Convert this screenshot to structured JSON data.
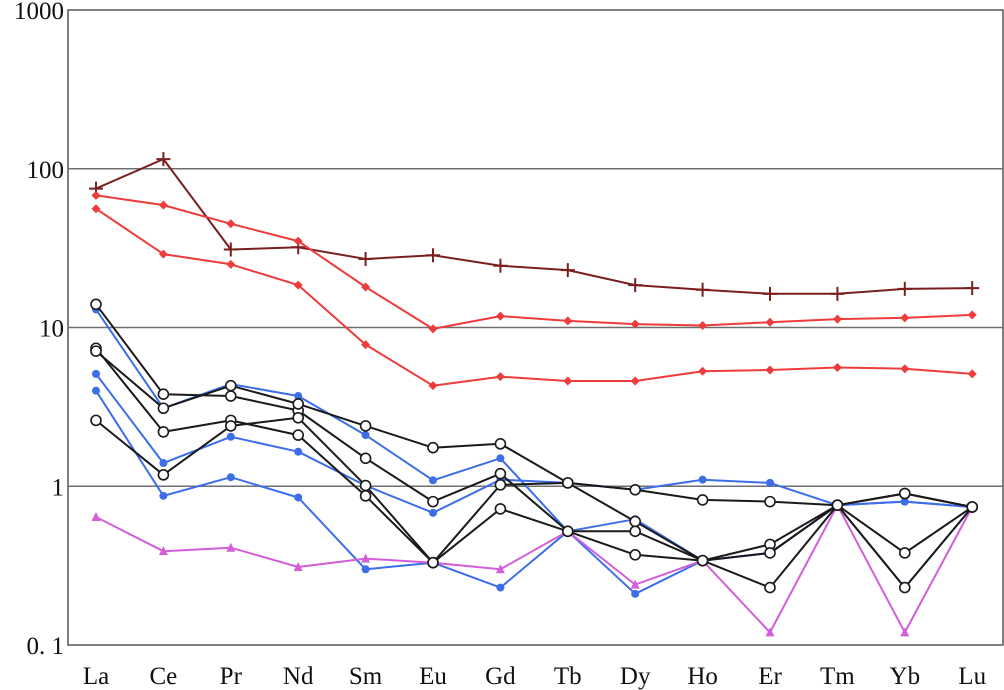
{
  "chart_data": {
    "type": "line",
    "title": "",
    "xlabel": "",
    "ylabel": "",
    "yscale": "log",
    "ylim": [
      0.1,
      1000
    ],
    "y_ticks": [
      {
        "value": 1000,
        "label": "1000"
      },
      {
        "value": 100,
        "label": "100"
      },
      {
        "value": 10,
        "label": "10"
      },
      {
        "value": 1,
        "label": "1"
      },
      {
        "value": 0.1,
        "label": "0. 1"
      }
    ],
    "categories": [
      "La",
      "Ce",
      "Pr",
      "Nd",
      "Sm",
      "Eu",
      "Gd",
      "Tb",
      "Dy",
      "Ho",
      "Er",
      "Tm",
      "Yb",
      "Lu"
    ],
    "series": [
      {
        "name": "dark-plus",
        "color": "#7a1f1f",
        "marker": "plus",
        "values": [
          75,
          115,
          31,
          32,
          27,
          28.5,
          24.5,
          23,
          18.5,
          17.3,
          16.3,
          16.3,
          17.5,
          17.7
        ]
      },
      {
        "name": "red-1",
        "color": "#ee3b3b",
        "marker": "diamond",
        "values": [
          68,
          59,
          45,
          35,
          18,
          9.8,
          11.8,
          11,
          10.5,
          10.3,
          10.8,
          11.3,
          11.5,
          12
        ]
      },
      {
        "name": "red-2",
        "color": "#ee3b3b",
        "marker": "diamond",
        "values": [
          56,
          29,
          25,
          18.5,
          7.8,
          4.3,
          4.9,
          4.6,
          4.6,
          5.3,
          5.4,
          5.6,
          5.5,
          5.1
        ]
      },
      {
        "name": "blue-1",
        "color": "#3d6ee8",
        "marker": "dot",
        "values": [
          13,
          3.1,
          4.4,
          3.7,
          2.1,
          1.09,
          1.5,
          0.52,
          0.62,
          0.34,
          0.38,
          0.76,
          0.23,
          0.74
        ]
      },
      {
        "name": "blue-2",
        "color": "#3d6ee8",
        "marker": "dot",
        "values": [
          5.1,
          1.4,
          2.05,
          1.65,
          1.01,
          0.68,
          1.1,
          1.05,
          0.95,
          1.1,
          1.05,
          0.76,
          0.8,
          0.74
        ]
      },
      {
        "name": "blue-3",
        "color": "#3d6ee8",
        "marker": "dot",
        "values": [
          4,
          0.87,
          1.14,
          0.85,
          0.3,
          0.33,
          0.23,
          0.52,
          0.21,
          0.34,
          0.38,
          0.76,
          0.8,
          0.74
        ]
      },
      {
        "name": "magenta",
        "color": "#d35fd8",
        "marker": "triangle",
        "values": [
          0.64,
          0.39,
          0.41,
          0.31,
          0.35,
          0.33,
          0.3,
          0.52,
          0.24,
          0.34,
          0.12,
          0.76,
          0.12,
          0.74
        ]
      },
      {
        "name": "black-1",
        "color": "#1a1a1a",
        "marker": "open-circle",
        "values": [
          14,
          3.8,
          3.7,
          3,
          1.5,
          0.8,
          1.2,
          0.52,
          0.37,
          0.34,
          0.23,
          0.76,
          0.9,
          0.74
        ]
      },
      {
        "name": "black-2",
        "color": "#1a1a1a",
        "marker": "open-circle",
        "values": [
          7.4,
          2.2,
          2.6,
          2.1,
          0.87,
          0.33,
          1.02,
          1.05,
          0.6,
          0.34,
          0.43,
          0.76,
          0.38,
          0.74
        ]
      },
      {
        "name": "black-3",
        "color": "#1a1a1a",
        "marker": "open-circle",
        "values": [
          7.1,
          3.1,
          4.3,
          3.3,
          2.4,
          1.75,
          1.85,
          1.05,
          0.95,
          0.82,
          0.8,
          0.76,
          0.9,
          0.74
        ]
      },
      {
        "name": "black-4",
        "color": "#1a1a1a",
        "marker": "open-circle",
        "values": [
          2.6,
          1.18,
          2.4,
          2.7,
          1.01,
          0.33,
          0.72,
          0.52,
          0.52,
          0.34,
          0.38,
          0.76,
          0.23,
          0.74
        ]
      }
    ]
  }
}
